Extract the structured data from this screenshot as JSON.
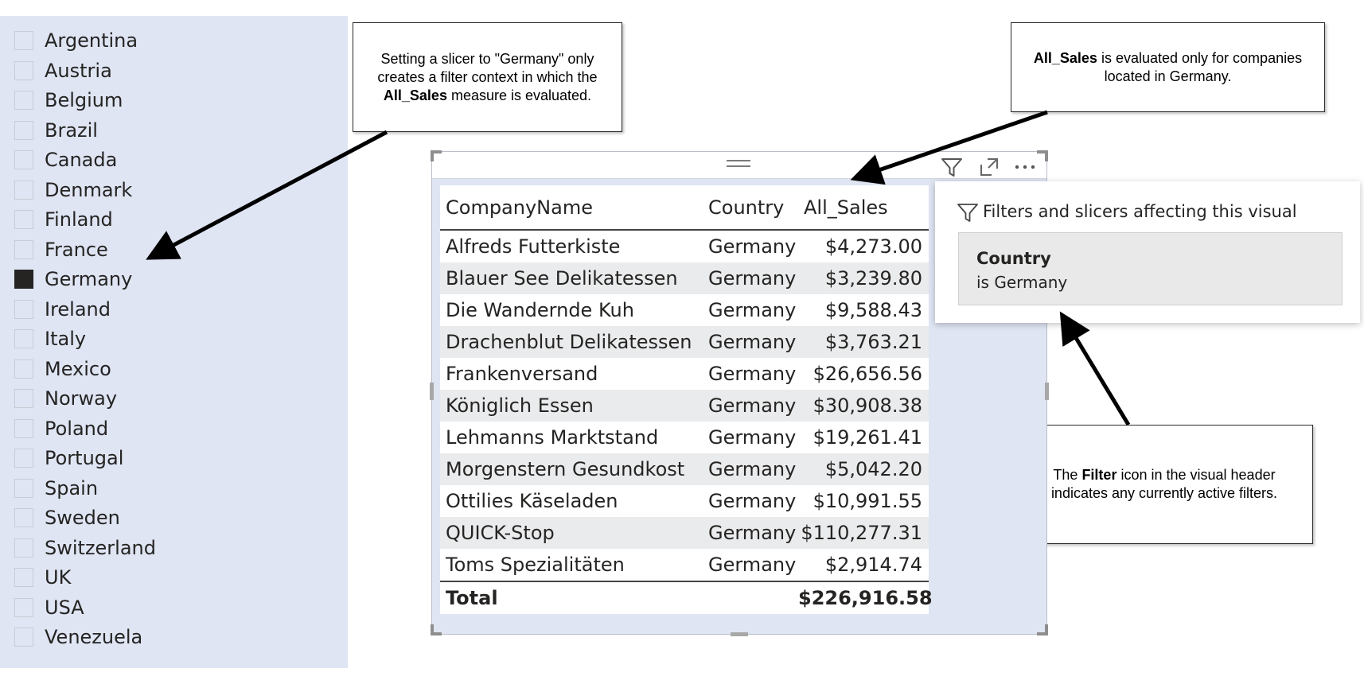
{
  "slicer": {
    "items": [
      {
        "label": "Argentina",
        "checked": false
      },
      {
        "label": "Austria",
        "checked": false
      },
      {
        "label": "Belgium",
        "checked": false
      },
      {
        "label": "Brazil",
        "checked": false
      },
      {
        "label": "Canada",
        "checked": false
      },
      {
        "label": "Denmark",
        "checked": false
      },
      {
        "label": "Finland",
        "checked": false
      },
      {
        "label": "France",
        "checked": false
      },
      {
        "label": "Germany",
        "checked": true
      },
      {
        "label": "Ireland",
        "checked": false
      },
      {
        "label": "Italy",
        "checked": false
      },
      {
        "label": "Mexico",
        "checked": false
      },
      {
        "label": "Norway",
        "checked": false
      },
      {
        "label": "Poland",
        "checked": false
      },
      {
        "label": "Portugal",
        "checked": false
      },
      {
        "label": "Spain",
        "checked": false
      },
      {
        "label": "Sweden",
        "checked": false
      },
      {
        "label": "Switzerland",
        "checked": false
      },
      {
        "label": "UK",
        "checked": false
      },
      {
        "label": "USA",
        "checked": false
      },
      {
        "label": "Venezuela",
        "checked": false
      }
    ]
  },
  "callouts": {
    "slicer": {
      "pre": "Setting a slicer to \"Germany\" only creates a filter context in which the ",
      "bold": "All_Sales",
      "post": " measure is evaluated."
    },
    "measure": {
      "pre": "",
      "bold": "All_Sales",
      "post": " is evaluated only for companies located in Germany."
    },
    "filter": {
      "pre": "The ",
      "bold": "Filter",
      "post": " icon in the visual header indicates any currently active filters."
    }
  },
  "table": {
    "columns": [
      "CompanyName",
      "Country",
      "All_Sales"
    ],
    "rows": [
      [
        "Alfreds Futterkiste",
        "Germany",
        "$4,273.00"
      ],
      [
        "Blauer See Delikatessen",
        "Germany",
        "$3,239.80"
      ],
      [
        "Die Wandernde Kuh",
        "Germany",
        "$9,588.43"
      ],
      [
        "Drachenblut Delikatessen",
        "Germany",
        "$3,763.21"
      ],
      [
        "Frankenversand",
        "Germany",
        "$26,656.56"
      ],
      [
        "Königlich Essen",
        "Germany",
        "$30,908.38"
      ],
      [
        "Lehmanns Marktstand",
        "Germany",
        "$19,261.41"
      ],
      [
        "Morgenstern Gesundkost",
        "Germany",
        "$5,042.20"
      ],
      [
        "Ottilies Käseladen",
        "Germany",
        "$10,991.55"
      ],
      [
        "QUICK-Stop",
        "Germany",
        "$110,277.31"
      ],
      [
        "Toms Spezialitäten",
        "Germany",
        "$2,914.74"
      ]
    ],
    "total_label": "Total",
    "total_value": "$226,916.58"
  },
  "visual_header": {
    "icons": [
      "filter-icon",
      "focus-mode-icon",
      "more-options-icon"
    ]
  },
  "filter_popup": {
    "title": "Filters and slicers affecting this visual",
    "field": "Country",
    "condition": "is Germany"
  }
}
